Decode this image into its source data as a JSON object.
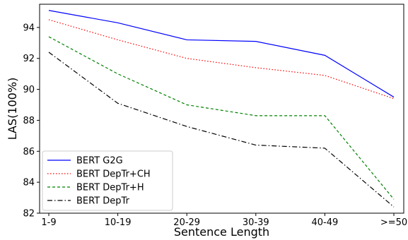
{
  "chart_data": {
    "type": "line",
    "title": "",
    "xlabel": "Sentence Length",
    "ylabel": "LAS(100%)",
    "categories": [
      "1-9",
      "10-19",
      "20-29",
      "30-39",
      "40-49",
      ">=50"
    ],
    "ylim": [
      82,
      95.5
    ],
    "yticks": [
      82,
      84,
      86,
      88,
      90,
      92,
      94
    ],
    "grid": false,
    "legend_position": "lower-left",
    "series": [
      {
        "name": "BERT G2G",
        "values": [
          95.1,
          94.3,
          93.2,
          93.1,
          92.2,
          89.5
        ],
        "color": "#0000ff",
        "dash": "solid"
      },
      {
        "name": "BERT DepTr+CH",
        "values": [
          94.5,
          93.2,
          92.0,
          91.4,
          90.9,
          89.4
        ],
        "color": "#ff0000",
        "dash": "dotted"
      },
      {
        "name": "BERT DepTr+H",
        "values": [
          93.4,
          91.0,
          89.0,
          88.3,
          88.3,
          82.9
        ],
        "color": "#008000",
        "dash": "dashed"
      },
      {
        "name": "BERT DepTr",
        "values": [
          92.4,
          89.1,
          87.6,
          86.4,
          86.2,
          82.4
        ],
        "color": "#000000",
        "dash": "dashdot"
      }
    ]
  }
}
